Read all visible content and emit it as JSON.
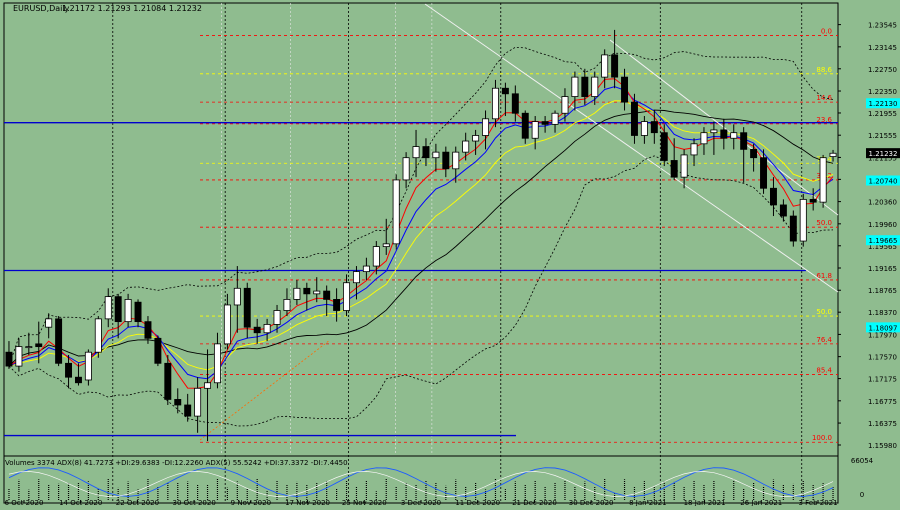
{
  "header": {
    "symbol": "EURUSD,Daily",
    "ohlc": "1.21172 1.21293 1.21084 1.21232"
  },
  "indicator_header": "Volumes 3374  ADX(8) 41.7273 +DI:29.6383 -DI:12.2260  ADX(5) 55.5242 +DI:37.3372 -DI:7.4450",
  "colors": {
    "background": "#8fbc8f",
    "bull_candle": "#ffffff",
    "bear_candle": "#000000",
    "grid": "#000000",
    "fib_red": "#ff0000",
    "fib_yellow": "#ffff00",
    "blue_level": "#0000cd",
    "ma_red": "#ff0000",
    "ma_blue": "#0000ff",
    "ma_yellow": "#ffff00",
    "ma_black": "#000000",
    "channel": "#f0f0f0",
    "price_tag": "#00ffff",
    "current_price_tag": "#000000"
  },
  "chart_data": {
    "type": "candlestick",
    "title": "EURUSD,Daily",
    "y_ticks": [
      "1.23545",
      "1.23145",
      "1.22750",
      "1.22350",
      "1.21955",
      "1.21555",
      "1.21155",
      "1.20760",
      "1.20360",
      "1.19960",
      "1.19565",
      "1.19165",
      "1.18765",
      "1.18370",
      "1.17970",
      "1.17570",
      "1.17175",
      "1.16775",
      "1.16375",
      "1.15980"
    ],
    "y_range": [
      1.158,
      1.237
    ],
    "x_ticks": [
      "6 Oct 2020",
      "14 Oct 2020",
      "22 Oct 2020",
      "30 Oct 2020",
      "9 Nov 2020",
      "17 Nov 2020",
      "25 Nov 2020",
      "3 Dec 2020",
      "11 Dec 2020",
      "21 Dec 2020",
      "30 Dec 2020",
      "8 Jan 2021",
      "18 Jan 2021",
      "26 Jan 2021",
      "3 Feb 2021"
    ],
    "current_price": "1.21232",
    "price_tags": [
      "1.22130",
      "1.20740",
      "1.19665",
      "1.18097"
    ],
    "fib_levels": [
      {
        "label": "0.0",
        "price": 1.2335,
        "color": "red"
      },
      {
        "label": "88.6",
        "price": 1.2266,
        "color": "yellow"
      },
      {
        "label": "14.6",
        "price": 1.2215,
        "color": "red"
      },
      {
        "label": "23.6",
        "price": 1.2176,
        "color": "red"
      },
      {
        "label": "76.4",
        "price": 1.2105,
        "color": "yellow"
      },
      {
        "label": "38.2",
        "price": 1.2075,
        "color": "red"
      },
      {
        "label": "50.0",
        "price": 1.199,
        "color": "red"
      },
      {
        "label": "61.8",
        "price": 1.1895,
        "color": "red"
      },
      {
        "label": "50.0",
        "price": 1.183,
        "color": "yellow"
      },
      {
        "label": "76.4",
        "price": 1.178,
        "color": "red"
      },
      {
        "label": "85.4",
        "price": 1.1725,
        "color": "red"
      },
      {
        "label": "100.0",
        "price": 1.1603,
        "color": "red"
      }
    ],
    "volume_axis": [
      "66054",
      "0"
    ],
    "candles": [
      {
        "o": 1.1765,
        "h": 1.1785,
        "l": 1.1735,
        "c": 1.174
      },
      {
        "o": 1.174,
        "h": 1.179,
        "l": 1.173,
        "c": 1.1775
      },
      {
        "o": 1.1775,
        "h": 1.18,
        "l": 1.176,
        "c": 1.1775
      },
      {
        "o": 1.178,
        "h": 1.182,
        "l": 1.1745,
        "c": 1.1775
      },
      {
        "o": 1.181,
        "h": 1.1835,
        "l": 1.179,
        "c": 1.1825
      },
      {
        "o": 1.1825,
        "h": 1.183,
        "l": 1.174,
        "c": 1.1745
      },
      {
        "o": 1.1745,
        "h": 1.176,
        "l": 1.17,
        "c": 1.172
      },
      {
        "o": 1.172,
        "h": 1.1745,
        "l": 1.1705,
        "c": 1.171
      },
      {
        "o": 1.1715,
        "h": 1.177,
        "l": 1.1705,
        "c": 1.1765
      },
      {
        "o": 1.1765,
        "h": 1.183,
        "l": 1.1755,
        "c": 1.1825
      },
      {
        "o": 1.1825,
        "h": 1.188,
        "l": 1.181,
        "c": 1.1865
      },
      {
        "o": 1.1865,
        "h": 1.187,
        "l": 1.179,
        "c": 1.182
      },
      {
        "o": 1.182,
        "h": 1.187,
        "l": 1.181,
        "c": 1.186
      },
      {
        "o": 1.1855,
        "h": 1.186,
        "l": 1.181,
        "c": 1.182
      },
      {
        "o": 1.182,
        "h": 1.183,
        "l": 1.178,
        "c": 1.179
      },
      {
        "o": 1.179,
        "h": 1.1795,
        "l": 1.174,
        "c": 1.1745
      },
      {
        "o": 1.1745,
        "h": 1.176,
        "l": 1.167,
        "c": 1.168
      },
      {
        "o": 1.168,
        "h": 1.17,
        "l": 1.1655,
        "c": 1.167
      },
      {
        "o": 1.167,
        "h": 1.169,
        "l": 1.164,
        "c": 1.165
      },
      {
        "o": 1.165,
        "h": 1.172,
        "l": 1.162,
        "c": 1.17
      },
      {
        "o": 1.17,
        "h": 1.177,
        "l": 1.1605,
        "c": 1.171
      },
      {
        "o": 1.171,
        "h": 1.18,
        "l": 1.17,
        "c": 1.178
      },
      {
        "o": 1.178,
        "h": 1.187,
        "l": 1.177,
        "c": 1.185
      },
      {
        "o": 1.185,
        "h": 1.192,
        "l": 1.18,
        "c": 1.188
      },
      {
        "o": 1.188,
        "h": 1.189,
        "l": 1.179,
        "c": 1.181
      },
      {
        "o": 1.181,
        "h": 1.1825,
        "l": 1.178,
        "c": 1.18
      },
      {
        "o": 1.18,
        "h": 1.1825,
        "l": 1.1785,
        "c": 1.1815
      },
      {
        "o": 1.1815,
        "h": 1.185,
        "l": 1.18,
        "c": 1.184
      },
      {
        "o": 1.184,
        "h": 1.188,
        "l": 1.183,
        "c": 1.186
      },
      {
        "o": 1.186,
        "h": 1.1895,
        "l": 1.185,
        "c": 1.188
      },
      {
        "o": 1.188,
        "h": 1.189,
        "l": 1.184,
        "c": 1.187
      },
      {
        "o": 1.187,
        "h": 1.19,
        "l": 1.1855,
        "c": 1.1875
      },
      {
        "o": 1.1875,
        "h": 1.1885,
        "l": 1.183,
        "c": 1.186
      },
      {
        "o": 1.186,
        "h": 1.188,
        "l": 1.182,
        "c": 1.184
      },
      {
        "o": 1.184,
        "h": 1.1905,
        "l": 1.183,
        "c": 1.189
      },
      {
        "o": 1.189,
        "h": 1.192,
        "l": 1.186,
        "c": 1.191
      },
      {
        "o": 1.191,
        "h": 1.1935,
        "l": 1.1895,
        "c": 1.192
      },
      {
        "o": 1.192,
        "h": 1.1965,
        "l": 1.1905,
        "c": 1.1955
      },
      {
        "o": 1.1955,
        "h": 1.2005,
        "l": 1.194,
        "c": 1.196
      },
      {
        "o": 1.196,
        "h": 1.2085,
        "l": 1.195,
        "c": 1.2075
      },
      {
        "o": 1.2075,
        "h": 1.2125,
        "l": 1.206,
        "c": 1.2115
      },
      {
        "o": 1.2115,
        "h": 1.2165,
        "l": 1.208,
        "c": 1.2135
      },
      {
        "o": 1.2135,
        "h": 1.215,
        "l": 1.21,
        "c": 1.2115
      },
      {
        "o": 1.2115,
        "h": 1.214,
        "l": 1.209,
        "c": 1.2125
      },
      {
        "o": 1.2125,
        "h": 1.2135,
        "l": 1.208,
        "c": 1.2095
      },
      {
        "o": 1.2095,
        "h": 1.2135,
        "l": 1.207,
        "c": 1.2125
      },
      {
        "o": 1.2125,
        "h": 1.216,
        "l": 1.211,
        "c": 1.2145
      },
      {
        "o": 1.2145,
        "h": 1.2165,
        "l": 1.212,
        "c": 1.2155
      },
      {
        "o": 1.2155,
        "h": 1.22,
        "l": 1.213,
        "c": 1.2185
      },
      {
        "o": 1.2185,
        "h": 1.2255,
        "l": 1.217,
        "c": 1.224
      },
      {
        "o": 1.224,
        "h": 1.225,
        "l": 1.219,
        "c": 1.223
      },
      {
        "o": 1.223,
        "h": 1.2245,
        "l": 1.218,
        "c": 1.2195
      },
      {
        "o": 1.2195,
        "h": 1.22,
        "l": 1.214,
        "c": 1.215
      },
      {
        "o": 1.215,
        "h": 1.219,
        "l": 1.213,
        "c": 1.218
      },
      {
        "o": 1.218,
        "h": 1.219,
        "l": 1.216,
        "c": 1.2175
      },
      {
        "o": 1.2175,
        "h": 1.22,
        "l": 1.216,
        "c": 1.2195
      },
      {
        "o": 1.2195,
        "h": 1.224,
        "l": 1.218,
        "c": 1.2225
      },
      {
        "o": 1.2225,
        "h": 1.227,
        "l": 1.22,
        "c": 1.226
      },
      {
        "o": 1.226,
        "h": 1.2275,
        "l": 1.221,
        "c": 1.2225
      },
      {
        "o": 1.2225,
        "h": 1.227,
        "l": 1.221,
        "c": 1.226
      },
      {
        "o": 1.226,
        "h": 1.231,
        "l": 1.224,
        "c": 1.23
      },
      {
        "o": 1.23,
        "h": 1.2345,
        "l": 1.224,
        "c": 1.226
      },
      {
        "o": 1.226,
        "h": 1.2275,
        "l": 1.22,
        "c": 1.2215
      },
      {
        "o": 1.2215,
        "h": 1.223,
        "l": 1.214,
        "c": 1.2155
      },
      {
        "o": 1.2155,
        "h": 1.219,
        "l": 1.214,
        "c": 1.218
      },
      {
        "o": 1.218,
        "h": 1.22,
        "l": 1.214,
        "c": 1.216
      },
      {
        "o": 1.216,
        "h": 1.2175,
        "l": 1.21,
        "c": 1.211
      },
      {
        "o": 1.211,
        "h": 1.215,
        "l": 1.2075,
        "c": 1.208
      },
      {
        "o": 1.208,
        "h": 1.213,
        "l": 1.206,
        "c": 1.212
      },
      {
        "o": 1.212,
        "h": 1.215,
        "l": 1.21,
        "c": 1.214
      },
      {
        "o": 1.214,
        "h": 1.217,
        "l": 1.212,
        "c": 1.216
      },
      {
        "o": 1.216,
        "h": 1.218,
        "l": 1.212,
        "c": 1.2165
      },
      {
        "o": 1.2165,
        "h": 1.2185,
        "l": 1.213,
        "c": 1.215
      },
      {
        "o": 1.215,
        "h": 1.2175,
        "l": 1.213,
        "c": 1.216
      },
      {
        "o": 1.216,
        "h": 1.217,
        "l": 1.207,
        "c": 1.213
      },
      {
        "o": 1.213,
        "h": 1.214,
        "l": 1.209,
        "c": 1.2115
      },
      {
        "o": 1.2115,
        "h": 1.213,
        "l": 1.205,
        "c": 1.206
      },
      {
        "o": 1.206,
        "h": 1.208,
        "l": 1.201,
        "c": 1.203
      },
      {
        "o": 1.203,
        "h": 1.204,
        "l": 1.2,
        "c": 1.201
      },
      {
        "o": 1.201,
        "h": 1.202,
        "l": 1.1955,
        "c": 1.1965
      },
      {
        "o": 1.1965,
        "h": 1.205,
        "l": 1.1955,
        "c": 1.204
      },
      {
        "o": 1.204,
        "h": 1.206,
        "l": 1.202,
        "c": 1.2035
      },
      {
        "o": 1.2035,
        "h": 1.212,
        "l": 1.2025,
        "c": 1.2115
      },
      {
        "o": 1.2117,
        "h": 1.2129,
        "l": 1.2108,
        "c": 1.2123
      }
    ]
  }
}
